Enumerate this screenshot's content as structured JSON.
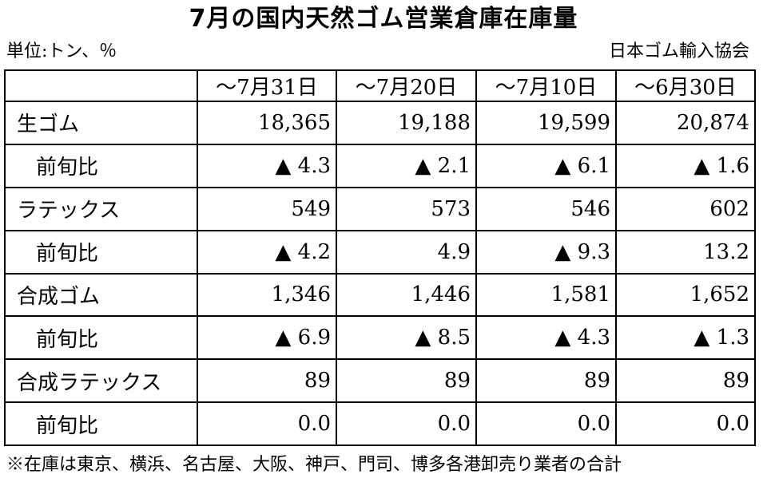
{
  "title": "7月の国内天然ゴム営業倉庫在庫量",
  "unit": "単位:トン、％",
  "source": "日本ゴム輸入協会",
  "table": {
    "corner": "",
    "columns": [
      "～7月31日",
      "～7月20日",
      "～7月10日",
      "～6月30日"
    ],
    "rows": [
      {
        "label": "生ゴム",
        "sub": false,
        "values": [
          "18,365",
          "19,188",
          "19,599",
          "20,874"
        ]
      },
      {
        "label": "前旬比",
        "sub": true,
        "values": [
          "▲ 4.3",
          "▲ 2.1",
          "▲ 6.1",
          "▲ 1.6"
        ]
      },
      {
        "label": "ラテックス",
        "sub": false,
        "values": [
          "549",
          "573",
          "546",
          "602"
        ]
      },
      {
        "label": "前旬比",
        "sub": true,
        "values": [
          "▲ 4.2",
          "4.9",
          "▲ 9.3",
          "13.2"
        ]
      },
      {
        "label": "合成ゴム",
        "sub": false,
        "values": [
          "1,346",
          "1,446",
          "1,581",
          "1,652"
        ]
      },
      {
        "label": "前旬比",
        "sub": true,
        "values": [
          "▲ 6.9",
          "▲ 8.5",
          "▲ 4.3",
          "▲ 1.3"
        ]
      },
      {
        "label": "合成ラテックス",
        "sub": false,
        "values": [
          "89",
          "89",
          "89",
          "89"
        ]
      },
      {
        "label": "前旬比",
        "sub": true,
        "values": [
          "0.0",
          "0.0",
          "0.0",
          "0.0"
        ]
      }
    ]
  },
  "note": "※在庫は東京、横浜、名古屋、大阪、神戸、門司、博多各港卸売り業者の合計"
}
